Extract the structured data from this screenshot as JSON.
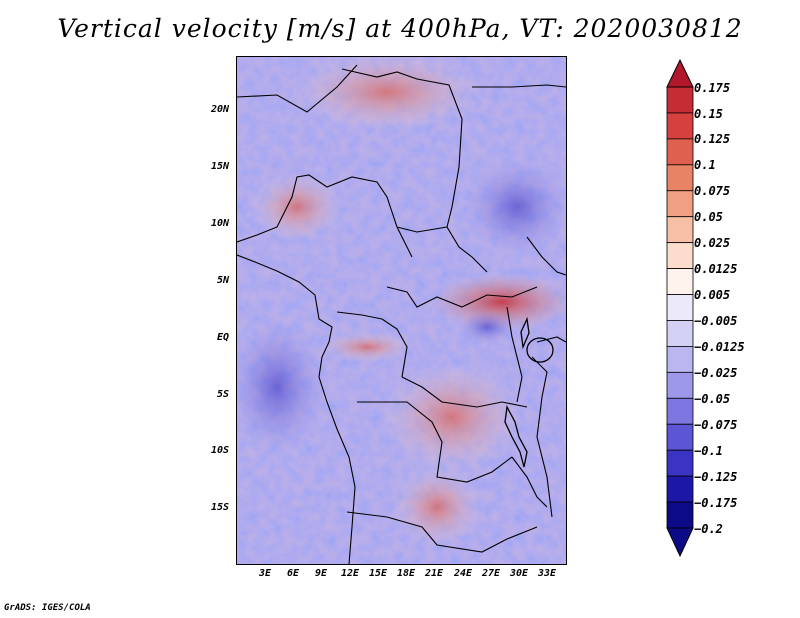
{
  "title": "Vertical velocity [m/s] at 400hPa, VT: 2020030812",
  "y_axis": {
    "ticks": [
      "20N",
      "15N",
      "10N",
      "5N",
      "EQ",
      "5S",
      "10S",
      "15S"
    ]
  },
  "x_axis": {
    "ticks": [
      "3E",
      "6E",
      "9E",
      "12E",
      "15E",
      "18E",
      "21E",
      "24E",
      "27E",
      "30E",
      "33E"
    ]
  },
  "colorbar": {
    "labels": [
      "0.175",
      "0.15",
      "0.125",
      "0.1",
      "0.075",
      "0.05",
      "0.025",
      "0.0125",
      "0.005",
      "−0.005",
      "−0.0125",
      "−0.025",
      "−0.05",
      "−0.075",
      "−0.1",
      "−0.125",
      "−0.175",
      "−0.2"
    ],
    "colors": [
      "#b2182b",
      "#c62c33",
      "#d6403e",
      "#e0604f",
      "#e98365",
      "#f0a082",
      "#f6bfa6",
      "#fbdccd",
      "#fdf2ec",
      "#eceaf8",
      "#d4d2f4",
      "#bab6ef",
      "#9e98ea",
      "#7e77e2",
      "#5c55d6",
      "#3a33c4",
      "#1d17a8",
      "#0c0a86"
    ]
  },
  "credit": "GrADS: IGES/COLA"
}
